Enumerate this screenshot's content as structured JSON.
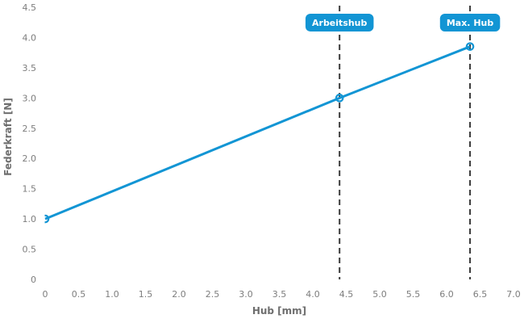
{
  "chart_data": {
    "type": "line",
    "title": "",
    "xlabel": "Hub [mm]",
    "ylabel": "Federkraft [N]",
    "xlim": [
      0,
      7.0
    ],
    "ylim": [
      0,
      4.5
    ],
    "grid": false,
    "legend": false,
    "x_ticks": [
      "0",
      "0.5",
      "1.0",
      "1.5",
      "2.0",
      "2.5",
      "3.0",
      "3.5",
      "4.0",
      "4.5",
      "5.0",
      "5.5",
      "6.0",
      "6.5",
      "7.0"
    ],
    "y_ticks": [
      "0",
      "0.5",
      "1.0",
      "1.5",
      "2.0",
      "2.5",
      "3.0",
      "3.5",
      "4.0",
      "4.5"
    ],
    "series": [
      {
        "name": "Federkraft",
        "points": [
          {
            "x": 0,
            "y": 1.0
          },
          {
            "x": 4.4,
            "y": 3.0
          },
          {
            "x": 6.35,
            "y": 3.85
          }
        ],
        "marker": "open-circle"
      }
    ],
    "annotations": [
      {
        "label": "Arbeitshub",
        "x": 4.4
      },
      {
        "label": "Max. Hub",
        "x": 6.35
      }
    ]
  },
  "colors": {
    "line": "#1295d4",
    "badge_fill": "#1295d4",
    "badge_text": "#ffffff",
    "tick_text": "#7d7d7d",
    "axis_title": "#6e6e6e",
    "guide_line": "#3a3a3a",
    "background": "#ffffff"
  }
}
